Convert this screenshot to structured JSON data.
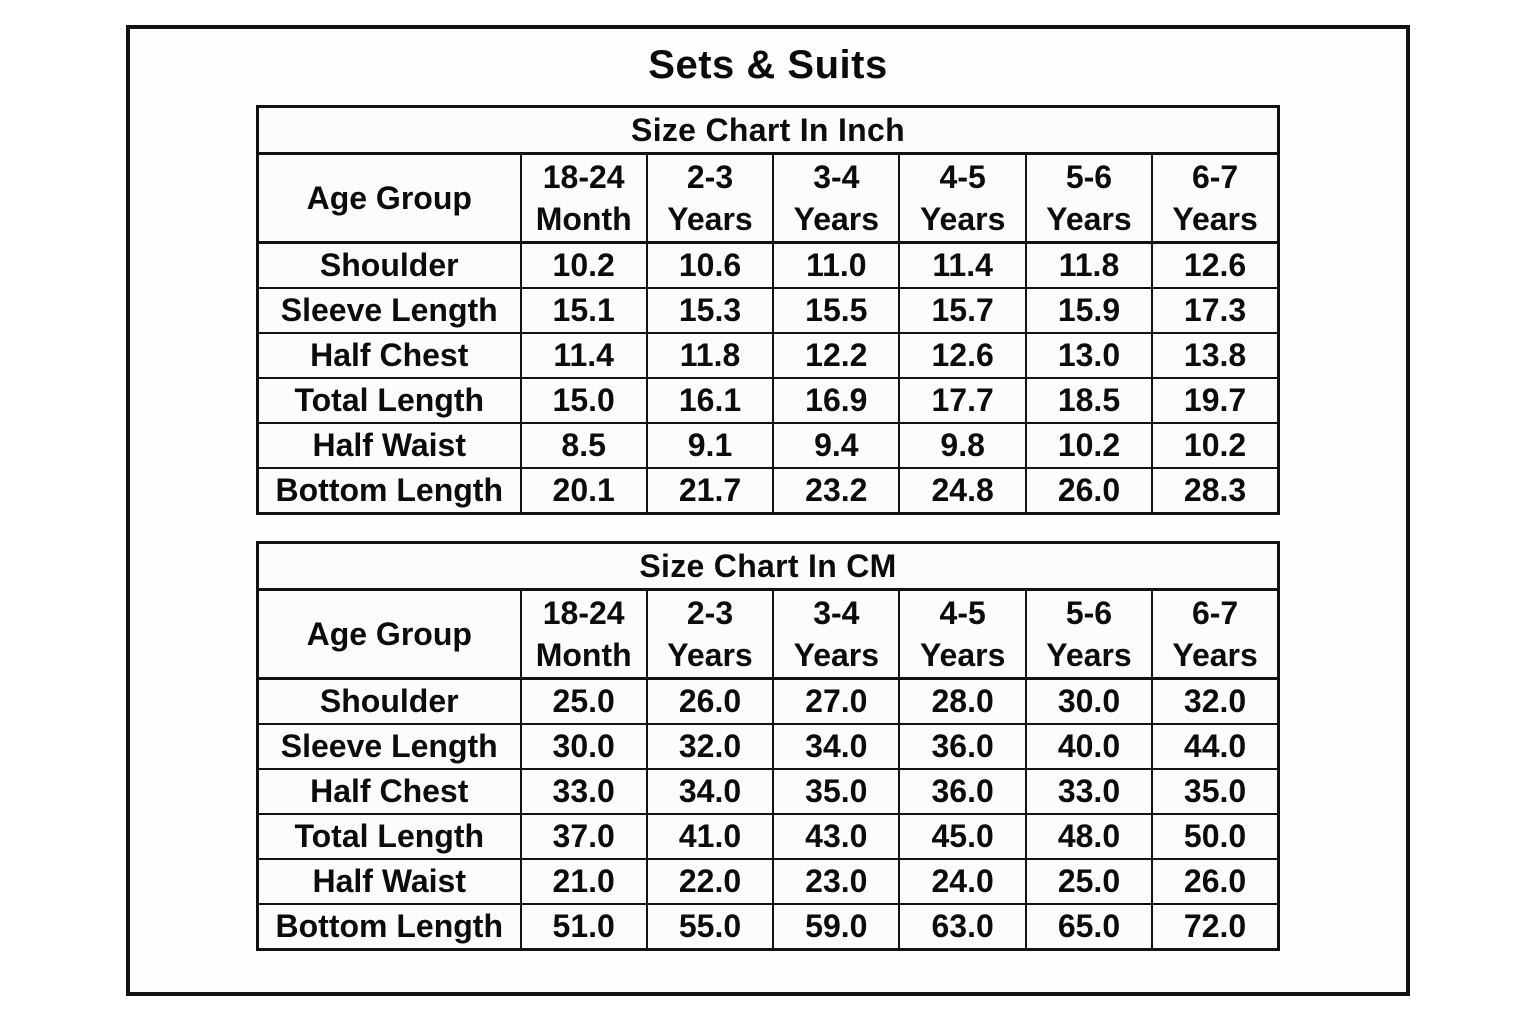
{
  "page_title": "Sets & Suits",
  "colors": {
    "border": "#121212",
    "text": "#0c0c0c",
    "background": "#fdfdfd"
  },
  "chart_data": [
    {
      "type": "table",
      "title": "Size Chart In Inch",
      "corner_header": "Age Group",
      "column_headers": [
        {
          "top": "18-24",
          "bottom": "Month"
        },
        {
          "top": "2-3",
          "bottom": "Years"
        },
        {
          "top": "3-4",
          "bottom": "Years"
        },
        {
          "top": "4-5",
          "bottom": "Years"
        },
        {
          "top": "5-6",
          "bottom": "Years"
        },
        {
          "top": "6-7",
          "bottom": "Years"
        }
      ],
      "rows": [
        {
          "label": "Shoulder",
          "values": [
            "10.2",
            "10.6",
            "11.0",
            "11.4",
            "11.8",
            "12.6"
          ]
        },
        {
          "label": "Sleeve Length",
          "values": [
            "15.1",
            "15.3",
            "15.5",
            "15.7",
            "15.9",
            "17.3"
          ]
        },
        {
          "label": "Half Chest",
          "values": [
            "11.4",
            "11.8",
            "12.2",
            "12.6",
            "13.0",
            "13.8"
          ]
        },
        {
          "label": "Total Length",
          "values": [
            "15.0",
            "16.1",
            "16.9",
            "17.7",
            "18.5",
            "19.7"
          ]
        },
        {
          "label": "Half Waist",
          "values": [
            "8.5",
            "9.1",
            "9.4",
            "9.8",
            "10.2",
            "10.2"
          ]
        },
        {
          "label": "Bottom Length",
          "values": [
            "20.1",
            "21.7",
            "23.2",
            "24.8",
            "26.0",
            "28.3"
          ]
        }
      ]
    },
    {
      "type": "table",
      "title": "Size Chart In CM",
      "corner_header": "Age Group",
      "column_headers": [
        {
          "top": "18-24",
          "bottom": "Month"
        },
        {
          "top": "2-3",
          "bottom": "Years"
        },
        {
          "top": "3-4",
          "bottom": "Years"
        },
        {
          "top": "4-5",
          "bottom": "Years"
        },
        {
          "top": "5-6",
          "bottom": "Years"
        },
        {
          "top": "6-7",
          "bottom": "Years"
        }
      ],
      "rows": [
        {
          "label": "Shoulder",
          "values": [
            "25.0",
            "26.0",
            "27.0",
            "28.0",
            "30.0",
            "32.0"
          ]
        },
        {
          "label": "Sleeve Length",
          "values": [
            "30.0",
            "32.0",
            "34.0",
            "36.0",
            "40.0",
            "44.0"
          ]
        },
        {
          "label": "Half Chest",
          "values": [
            "33.0",
            "34.0",
            "35.0",
            "36.0",
            "33.0",
            "35.0"
          ]
        },
        {
          "label": "Total Length",
          "values": [
            "37.0",
            "41.0",
            "43.0",
            "45.0",
            "48.0",
            "50.0"
          ]
        },
        {
          "label": "Half Waist",
          "values": [
            "21.0",
            "22.0",
            "23.0",
            "24.0",
            "25.0",
            "26.0"
          ]
        },
        {
          "label": "Bottom Length",
          "values": [
            "51.0",
            "55.0",
            "59.0",
            "63.0",
            "65.0",
            "72.0"
          ]
        }
      ]
    }
  ]
}
